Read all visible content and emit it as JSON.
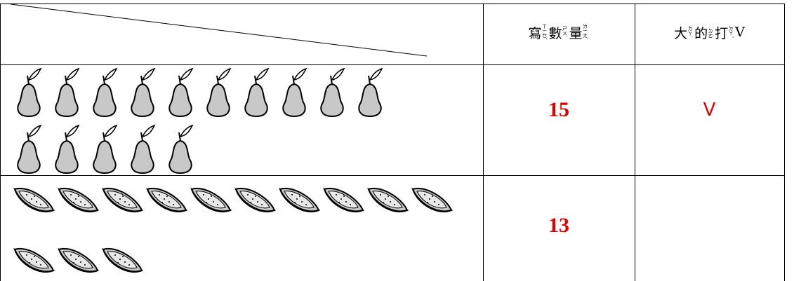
{
  "table": {
    "header": [
      [
        {
          "char": "寫",
          "zhuyin": "ㄒㄧㄝˇ"
        },
        {
          "char": "數",
          "zhuyin": "ㄕㄨˋ"
        },
        {
          "char": "量",
          "zhuyin": "ㄌㄧㄤˋ"
        }
      ],
      [
        {
          "char": "大",
          "zhuyin": "ㄉㄚˋ"
        },
        {
          "char": "的",
          "zhuyin": "˙ㄉㄜ"
        },
        {
          "char": "打",
          "zhuyin": "ㄉㄚˇ"
        },
        {
          "char": "V"
        }
      ]
    ],
    "rows": [
      {
        "icon": "pear",
        "count": 15,
        "check": "V"
      },
      {
        "icon": "watermelon",
        "count": 13
      }
    ]
  }
}
